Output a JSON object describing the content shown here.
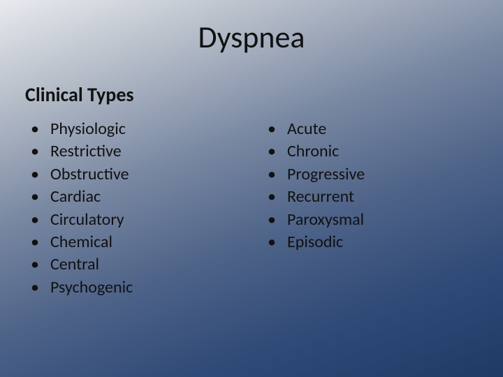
{
  "type": "slide",
  "background_gradient": [
    "#e8eaee",
    "#b8bfca",
    "#7988a2",
    "#4e6388",
    "#2f4a77",
    "#203a66"
  ],
  "title": "Dyspnea",
  "title_fontsize": 44,
  "subtitle": "Clinical Types",
  "subtitle_fontsize": 28,
  "subtitle_weight": "bold",
  "body_fontsize": 24,
  "text_color": "#111111",
  "columns": {
    "left": [
      "Physiologic",
      "Restrictive",
      "Obstructive",
      "Cardiac",
      "Circulatory",
      "Chemical",
      "Central",
      "Psychogenic"
    ],
    "right": [
      "Acute",
      "Chronic",
      "Progressive",
      "Recurrent",
      "Paroxysmal",
      "Episodic"
    ]
  }
}
